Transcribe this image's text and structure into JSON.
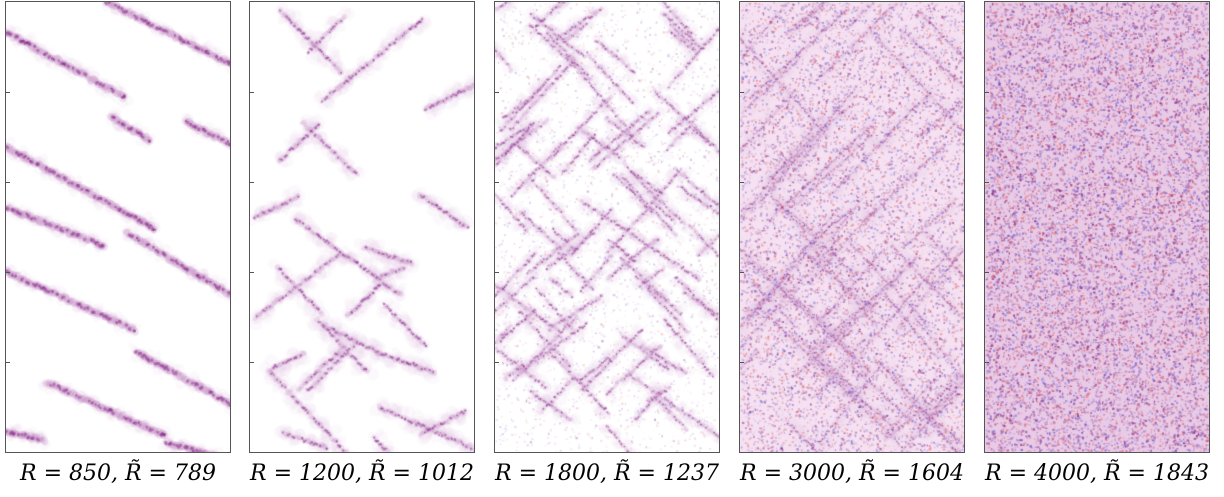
{
  "chart_data": [
    {
      "type": "heatmap",
      "title": "R = 850, R̃ = 789",
      "R": 850,
      "R_tilde": 789,
      "pattern": "isolated-oblique-stripes"
    },
    {
      "type": "heatmap",
      "title": "R = 1200, R̃ = 1012",
      "R": 1200,
      "R_tilde": 1012,
      "pattern": "sparse-network"
    },
    {
      "type": "heatmap",
      "title": "R = 1800, R̃ = 1237",
      "R": 1800,
      "R_tilde": 1237,
      "pattern": "dense-labyrinth"
    },
    {
      "type": "heatmap",
      "title": "R = 3000, R̃ = 1604",
      "R": 3000,
      "R_tilde": 1604,
      "pattern": "crossed-bands"
    },
    {
      "type": "heatmap",
      "title": "R = 4000, R̃ = 1843",
      "R": 4000,
      "R_tilde": 1843,
      "pattern": "uniform-noise"
    }
  ],
  "colors": {
    "core": "#6e0a6e",
    "mid": "#b06ab0",
    "light": "#e6c8e6",
    "blue": "#5a50d0",
    "red": "#e05050"
  }
}
